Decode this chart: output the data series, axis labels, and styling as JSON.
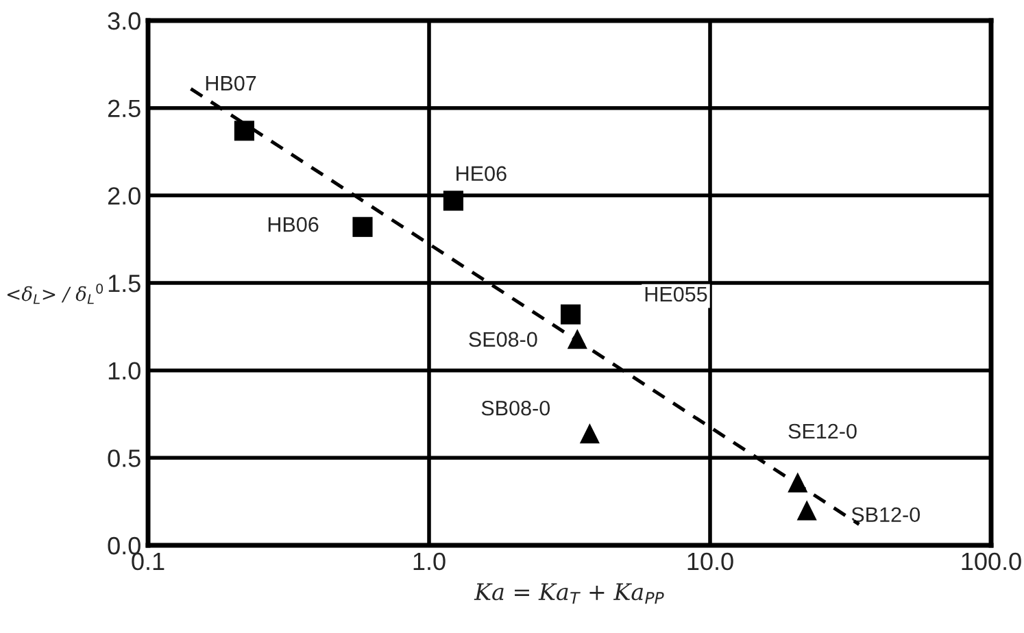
{
  "chart_data": {
    "type": "scatter",
    "xlabel": "Ka = Ka$_{T}$ + Ka$_{PP}$",
    "ylabel": "<δ$_{L}$> / δ$_{L}$$^{0}$",
    "log": "x",
    "xlim": [
      0.1,
      100
    ],
    "xticks": [
      {
        "value": 0.1,
        "label": "0.1"
      },
      {
        "value": 1,
        "label": "1.0"
      },
      {
        "value": 10,
        "label": "10.0"
      },
      {
        "value": 100,
        "label": "100.0"
      }
    ],
    "ylim": [
      0,
      3
    ],
    "yticks": [
      {
        "value": 0,
        "label": "0.0"
      },
      {
        "value": 0.5,
        "label": "0.5"
      },
      {
        "value": 1,
        "label": "1.0"
      },
      {
        "value": 1.5,
        "label": "1.5"
      },
      {
        "value": 2,
        "label": "2.0"
      },
      {
        "value": 2.5,
        "label": "2.5"
      },
      {
        "value": 3,
        "label": "3.0"
      }
    ],
    "grid": true,
    "series": [
      {
        "type": "scatter",
        "marker": "square",
        "color": "#000000",
        "x": [
          0.22,
          0.58,
          1.22,
          3.19
        ],
        "values": [
          2.37,
          1.82,
          1.97,
          1.32
        ]
      },
      {
        "type": "scatter",
        "marker": "triangle",
        "color": "#000000",
        "x": [
          3.37,
          3.73,
          20.5,
          22.1
        ],
        "values": [
          1.18,
          0.64,
          0.36,
          0.2
        ]
      },
      {
        "type": "line",
        "line_style": "dashed",
        "marker": "none",
        "color": "#000000",
        "x": [
          0.142,
          33.9
        ],
        "values": [
          2.61,
          0.12
        ]
      }
    ],
    "annotations": [
      "HB07",
      "HE06",
      "HB06",
      "HE055",
      "SE08-0",
      "SB08-0",
      "SE12-0",
      "SB12-0"
    ]
  }
}
